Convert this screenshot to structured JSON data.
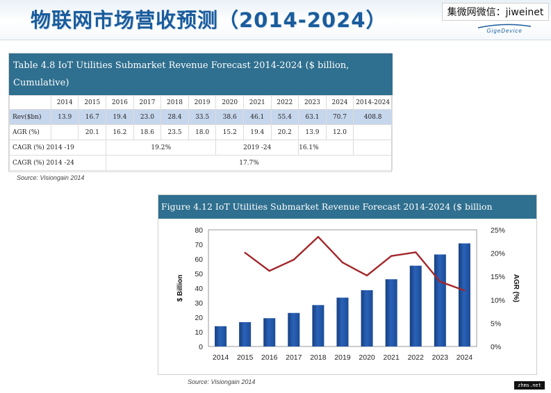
{
  "header": {
    "title": "物联网市场营收预测（2014-2024）",
    "watermark": "集微网微信：jiweinet",
    "logo_text": "GigeDevice"
  },
  "table": {
    "title": "Table 4.8 IoT Utilities Submarket Revenue Forecast 2014-2024 ($ billion, Cumulative)",
    "columns": [
      "",
      "2014",
      "2015",
      "2016",
      "2017",
      "2018",
      "2019",
      "2020",
      "2021",
      "2022",
      "2023",
      "2024",
      "2014-2024"
    ],
    "rev_label": "Rev($bn)",
    "rev": [
      "13.9",
      "16.7",
      "19.4",
      "23.0",
      "28.4",
      "33.5",
      "38.6",
      "46.1",
      "55.4",
      "63.1",
      "70.7",
      "408.8"
    ],
    "agr_label": "AGR (%)",
    "agr": [
      "",
      "20.1",
      "16.2",
      "18.6",
      "23.5",
      "18.0",
      "15.2",
      "19.4",
      "20.2",
      "13.9",
      "12.0",
      ""
    ],
    "cagr1_label": "CAGR (%) 2014 -19",
    "cagr1_value": "19.2%",
    "cagr1b_label": "2019 -24",
    "cagr1b_value": "16.1%",
    "cagr2_label": "CAGR (%) 2014 -24",
    "cagr2_value": "17.7%",
    "source": "Source: Visiongain 2014"
  },
  "figure": {
    "title": "Figure 4.12 IoT Utilities Submarket Revenue Forecast 2014-2024 ($ billion",
    "source": "Source: Visiongain 2014"
  },
  "corner_mark": "zhms.net",
  "chart_data": {
    "type": "bar",
    "categories": [
      "2014",
      "2015",
      "2016",
      "2017",
      "2018",
      "2019",
      "2020",
      "2021",
      "2022",
      "2023",
      "2024"
    ],
    "series": [
      {
        "name": "",
        "type": "bar",
        "axis": "left",
        "color": "#2a62b8",
        "values": [
          13.9,
          16.7,
          19.4,
          23.0,
          28.4,
          33.5,
          38.6,
          46.1,
          55.4,
          63.1,
          70.7
        ]
      },
      {
        "name": "",
        "type": "line",
        "axis": "right",
        "color": "#a3262a",
        "values": [
          null,
          20.1,
          16.2,
          18.6,
          23.5,
          18.0,
          15.2,
          19.4,
          20.2,
          13.9,
          12.0
        ]
      }
    ],
    "ylabel": "$ Billion",
    "y2label": "AGR (%)",
    "ylim": [
      0,
      80
    ],
    "yticks": [
      "0",
      "10",
      "20",
      "30",
      "40",
      "50",
      "60",
      "70",
      "80"
    ],
    "y2lim": [
      0,
      25
    ],
    "y2ticks": [
      "0%",
      "5%",
      "10%",
      "15%",
      "20%",
      "25%"
    ],
    "grid": false,
    "legend": "none"
  }
}
